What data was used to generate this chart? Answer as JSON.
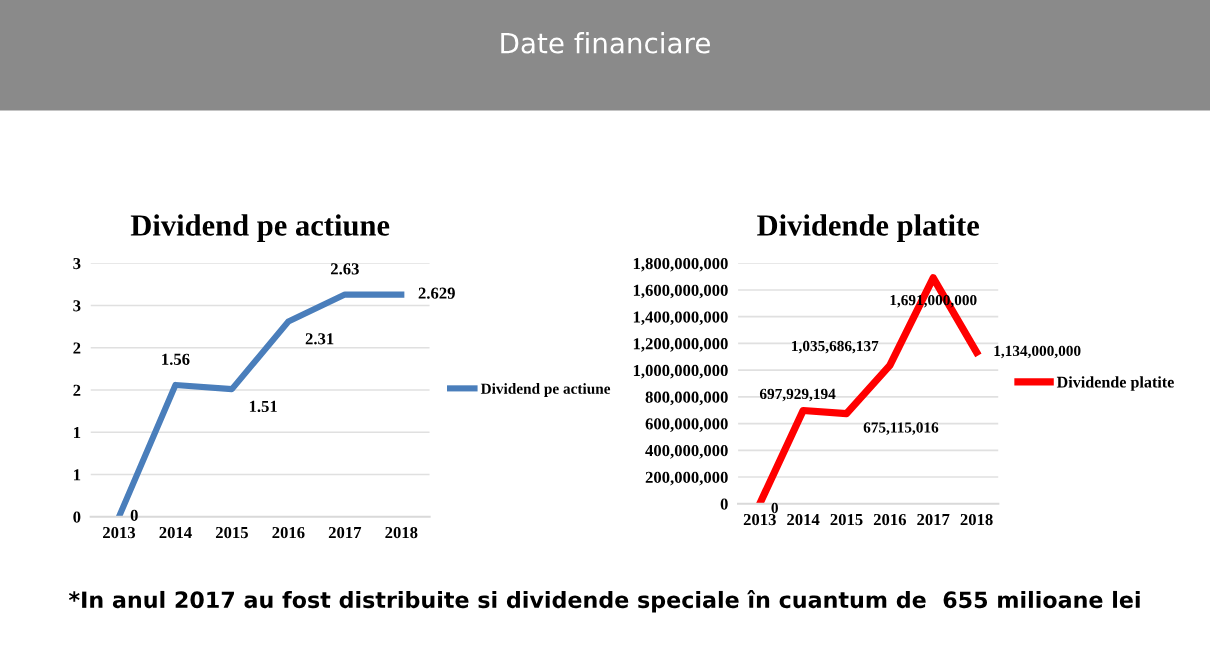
{
  "chart_data": [
    {
      "type": "line",
      "title": "Dividend pe actiune",
      "annotations": [
        "Date financiare"
      ],
      "categories": [
        "2013",
        "2014",
        "2015",
        "2016",
        "2017",
        "2018"
      ],
      "series": [
        {
          "name": "Dividend pe actiune",
          "color": "#4a7ebb",
          "values": [
            0,
            1.56,
            1.51,
            2.31,
            2.63,
            2.629
          ]
        }
      ],
      "ylim": [
        0,
        3
      ],
      "yticks": [
        0,
        {
          "value": 0.5,
          "label": "1"
        },
        1,
        {
          "value": 1.5,
          "label": "2"
        },
        2,
        {
          "value": 2.5,
          "label": "3"
        },
        3
      ],
      "grid": "y",
      "legend": "right",
      "data_labels": true,
      "marker": "none",
      "line_style": "solid"
    },
    {
      "type": "line",
      "title": "Dividende platite",
      "annotations": [
        "*In anul 2017 au fost distribuite si dividende speciale în cuantum de  655 milioane lei"
      ],
      "categories": [
        "2013",
        "2014",
        "2015",
        "2016",
        "2017",
        "2018"
      ],
      "series": [
        {
          "name": "Dividende platite",
          "color": "#ff0000",
          "values": [
            0,
            697929194,
            675115016,
            1035686137,
            1691000000,
            1134000000
          ],
          "value_labels": [
            "0",
            "697,929,194",
            "675,115,016",
            "1,035,686,137",
            "1,691,000,000",
            "1,134,000,000"
          ]
        }
      ],
      "ylim": [
        0,
        1800000000
      ],
      "yticks": [
        {
          "value": 0,
          "label": "0"
        },
        {
          "value": 200000000,
          "label": "200,000,000"
        },
        {
          "value": 400000000,
          "label": "400,000,000"
        },
        {
          "value": 600000000,
          "label": "600,000,000"
        },
        {
          "value": 800000000,
          "label": "800,000,000"
        },
        {
          "value": 1000000000,
          "label": "1,000,000,000"
        },
        {
          "value": 1200000000,
          "label": "1,200,000,000"
        },
        {
          "value": 1400000000,
          "label": "1,400,000,000"
        },
        {
          "value": 1600000000,
          "label": "1,600,000,000"
        },
        {
          "value": 1800000000,
          "label": "1,800,000,000"
        }
      ],
      "grid": "y",
      "legend": "right",
      "marker": "none",
      "line_style": "solid"
    }
  ]
}
